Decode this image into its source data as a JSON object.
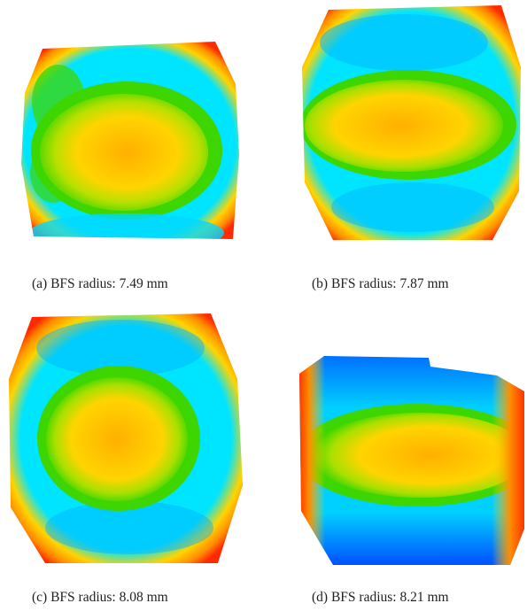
{
  "figure": {
    "panels": [
      {
        "id": "a",
        "caption": "(a)  BFS radius: 7.49 mm"
      },
      {
        "id": "b",
        "caption": "(b)  BFS radius: 7.87 mm"
      },
      {
        "id": "c",
        "caption": "(c)  BFS radius: 8.08 mm"
      },
      {
        "id": "d",
        "caption": "(d)  BFS radius: 8.21 mm"
      }
    ],
    "colormap": [
      "#ff2a00",
      "#ff8c00",
      "#ffd400",
      "#3ed600",
      "#00e5ff",
      "#00a0ff",
      "#0050ff"
    ]
  }
}
